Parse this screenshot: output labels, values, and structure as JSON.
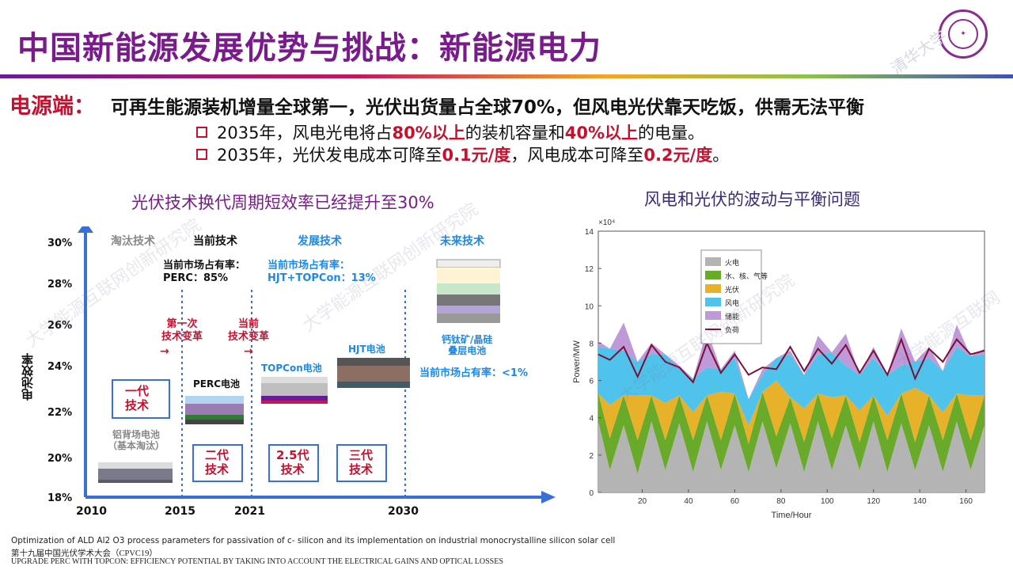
{
  "title": "中国新能源发展优势与挑战：新能源电力",
  "logo": {
    "text": "清华大学",
    "watermark": "清华大学"
  },
  "lead": {
    "label": "电源端：",
    "text": "可再生能源装机增量全球第一，光伏出货量占全球70%，但风电光伏靠天吃饭，供需无法平衡"
  },
  "bullets": [
    {
      "pre": "2035年，风电光电将占",
      "hl1": "80%以上",
      "mid": "的装机容量和",
      "hl2": "40%以上",
      "post": "的电量。"
    },
    {
      "pre": "2035年，光伏发电成本可降至",
      "hl1": "0.1元/度",
      "mid": "，风电成本可降至",
      "hl2": "0.2元/度",
      "post": "。"
    }
  ],
  "left_chart": {
    "title": "光伏技术换代周期短效率已经提升至30%",
    "ylabel": "电池效率",
    "y_ticks": [
      "30%",
      "28%",
      "26%",
      "24%",
      "22%",
      "20%",
      "18%"
    ],
    "x_ticks": [
      "2010",
      "2015",
      "2021",
      "2030"
    ],
    "column_headers": [
      "淘汰技术",
      "当前技术",
      "发展技术",
      "未来技术"
    ],
    "share_current": "当前市场占有率：\nPERC：85%",
    "share_dev": "当前市场占有率：\nHJT+TOPCon：13%",
    "share_future": "当前市场占有率：<1%",
    "transition1": "第一次\n技术变革",
    "transition2": "当前\n技术变革",
    "cells": [
      "铝背场电池\n（基本淘汰）",
      "PERC电池",
      "TOPCon电池",
      "HJT电池",
      "钙钛矿/晶硅\n叠层电池"
    ],
    "generations": [
      "一代\n技术",
      "二代\n技术",
      "2.5代\n技术",
      "三代\n技术"
    ],
    "colors": {
      "axis": "#3a6fd8",
      "red": "#c8102e",
      "blue": "#1e88e5",
      "gray": "#888888"
    }
  },
  "chart_data": {
    "type": "area",
    "title": "风电和光伏的波动与平衡问题",
    "xlabel": "Time/Hour",
    "ylabel": "Power/MW",
    "y_exponent": "×10⁴",
    "xlim": [
      1,
      168
    ],
    "ylim": [
      0,
      14
    ],
    "x_ticks": [
      20,
      40,
      60,
      80,
      100,
      120,
      140,
      160
    ],
    "y_ticks": [
      0,
      2,
      4,
      6,
      8,
      10,
      12,
      14
    ],
    "x": [
      1,
      6,
      12,
      18,
      24,
      30,
      36,
      42,
      48,
      54,
      60,
      66,
      72,
      78,
      84,
      90,
      96,
      102,
      108,
      114,
      120,
      126,
      132,
      138,
      144,
      150,
      156,
      162,
      168
    ],
    "series": [
      {
        "name": "火电",
        "color": "#b4b4b4",
        "values": [
          3.8,
          1.2,
          3.6,
          1.0,
          3.8,
          1.2,
          3.7,
          1.1,
          3.8,
          1.2,
          3.6,
          1.1,
          3.8,
          1.3,
          3.7,
          1.1,
          3.8,
          1.2,
          3.6,
          1.2,
          3.8,
          1.1,
          3.7,
          1.2,
          3.6,
          1.1,
          3.8,
          1.2,
          3.6
        ]
      },
      {
        "name": "水、核、气等",
        "color": "#6aaa2a",
        "values": [
          1.5,
          1.7,
          1.6,
          1.8,
          1.4,
          1.6,
          1.5,
          1.7,
          1.4,
          1.6,
          1.7,
          1.5,
          1.6,
          1.7,
          1.4,
          1.6,
          1.5,
          1.7,
          1.6,
          1.5,
          1.4,
          1.7,
          1.6,
          1.5,
          1.6,
          1.7,
          1.5,
          1.6,
          1.6
        ]
      },
      {
        "name": "光伏",
        "color": "#e8b12a",
        "values": [
          0.0,
          1.8,
          0.0,
          2.4,
          0.0,
          2.0,
          0.0,
          1.5,
          0.0,
          2.6,
          0.0,
          1.0,
          0.0,
          3.0,
          0.0,
          1.8,
          0.0,
          2.2,
          0.0,
          1.7,
          0.0,
          1.3,
          0.0,
          2.9,
          0.0,
          1.5,
          0.0,
          2.4,
          0.0
        ]
      },
      {
        "name": "风电",
        "color": "#4fc3ec",
        "values": [
          2.5,
          3.0,
          2.4,
          1.8,
          2.2,
          2.6,
          1.4,
          1.8,
          1.5,
          1.2,
          1.9,
          1.4,
          0.9,
          1.2,
          2.3,
          1.8,
          2.1,
          2.4,
          1.6,
          1.9,
          2.0,
          2.2,
          1.5,
          1.4,
          2.0,
          2.2,
          2.5,
          2.1,
          2.2
        ]
      },
      {
        "name": "储能",
        "color": "#c09ad8",
        "values": [
          0.3,
          0.0,
          1.5,
          0.0,
          0.6,
          0.0,
          0.2,
          0.0,
          2.0,
          0.0,
          0.4,
          0.0,
          0.3,
          0.0,
          0.2,
          0.0,
          1.0,
          0.0,
          1.7,
          0.0,
          0.6,
          0.0,
          2.0,
          0.0,
          0.6,
          0.0,
          1.2,
          0.0,
          0.3
        ]
      },
      {
        "name": "负荷",
        "color": "#7a1038",
        "values": [
          7.4,
          7.1,
          7.8,
          6.2,
          7.9,
          7.0,
          6.7,
          5.9,
          8.0,
          6.4,
          7.4,
          6.3,
          6.7,
          6.6,
          7.8,
          6.5,
          7.7,
          6.9,
          7.9,
          6.4,
          7.6,
          6.3,
          8.2,
          6.1,
          7.7,
          7.0,
          8.2,
          7.4,
          7.6
        ]
      }
    ],
    "legend": "top-left"
  },
  "footer": {
    "line1": "Optimization of ALD Al2 O3 process parameters for passivation of c‐ silicon and its implementation on industrial monocrystalline silicon solar cell",
    "line2": "第十九届中国光伏学术大会（CPVC19）",
    "line3": "UPGRADE PERC WITH TOPCON: EFFICIENCY POTENTIAL BY TAKING INTO ACCOUNT THE ELECTRICAL GAINS AND OPTICAL LOSSES"
  }
}
